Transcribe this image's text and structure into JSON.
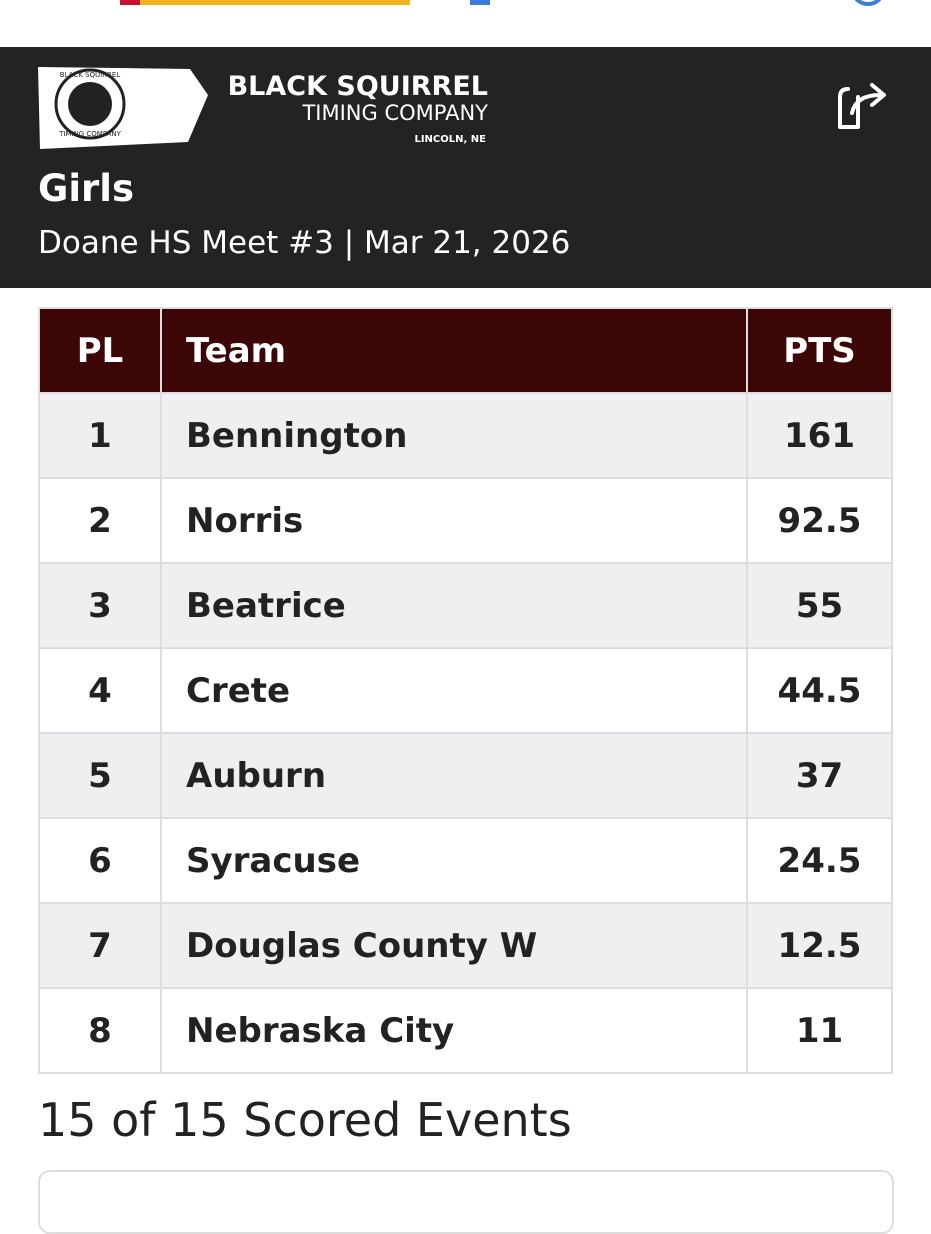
{
  "header": {
    "logo": {
      "ring_top": "BLACK SQUIRREL",
      "ring_bottom": "TIMING COMPANY",
      "name_line1": "BLACK SQUIRREL",
      "name_line2": "TIMING COMPANY",
      "location": "LINCOLN, NE"
    },
    "title": "Girls",
    "subtitle": "Doane HS Meet #3 | Mar 21, 2026"
  },
  "table": {
    "columns": [
      "PL",
      "Team",
      "PTS"
    ],
    "rows": [
      [
        1,
        "Bennington",
        161
      ],
      [
        2,
        "Norris",
        92.5
      ],
      [
        3,
        "Beatrice",
        55
      ],
      [
        4,
        "Crete",
        44.5
      ],
      [
        5,
        "Auburn",
        37
      ],
      [
        6,
        "Syracuse",
        24.5
      ],
      [
        7,
        "Douglas County W",
        12.5
      ],
      [
        8,
        "Nebraska City",
        11
      ]
    ]
  },
  "events_heading": "15 of 15 Scored Events"
}
